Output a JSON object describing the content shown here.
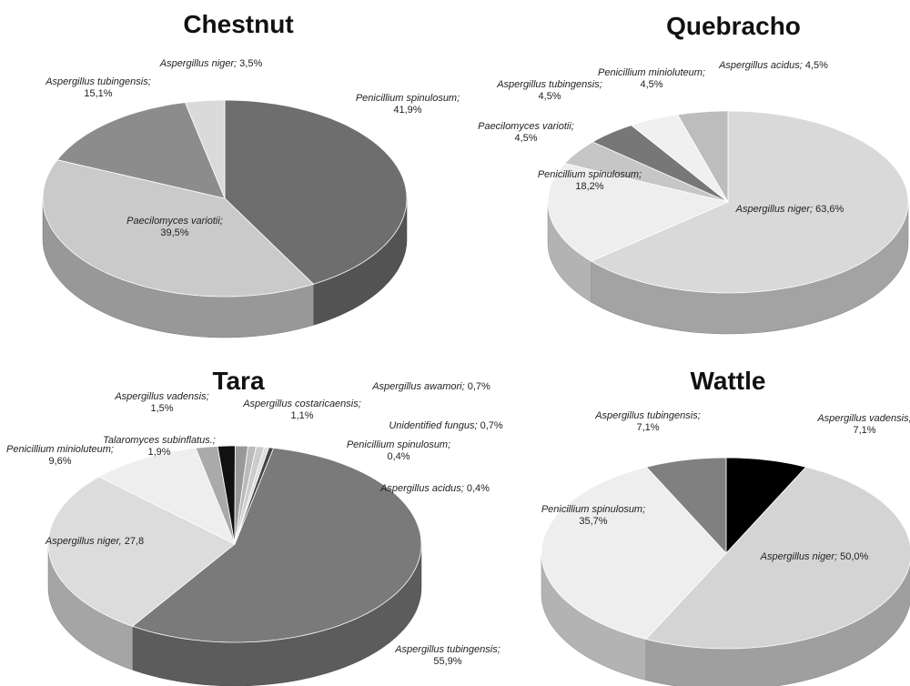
{
  "chart_data": [
    {
      "type": "pie3d",
      "title": "Chestnut",
      "categories": [
        "Penicillium spinulosum;",
        "Paecilomyces variotii;",
        "Aspergillus tubingensis;",
        "Aspergillus niger;"
      ],
      "values": [
        41.9,
        39.5,
        15.1,
        3.5
      ],
      "value_labels": [
        "41,9%",
        "39,5%",
        "15,1%",
        "3,5%"
      ],
      "colors": [
        "#6e6e6e",
        "#cacaca",
        "#8c8c8c",
        "#dadada"
      ]
    },
    {
      "type": "pie3d",
      "title": "Quebracho",
      "categories": [
        "Aspergillus niger;",
        "Penicillium spinulosum;",
        "Paecilomyces variotii;",
        "Aspergillus tubingensis;",
        "Penicillium minioluteum;",
        "Aspergillus acidus;"
      ],
      "values": [
        63.6,
        18.2,
        4.5,
        4.5,
        4.5,
        4.5
      ],
      "value_labels": [
        "63,6%",
        "18,2%",
        "4,5%",
        "4,5%",
        "4,5%",
        "4,5%"
      ],
      "colors": [
        "#d9d9d9",
        "#eeeeee",
        "#c6c6c6",
        "#777777",
        "#f0f0f0",
        "#bdbdbd"
      ]
    },
    {
      "type": "pie3d",
      "title": "Tara",
      "categories": [
        "Aspergillus tubingensis;",
        "Aspergillus niger,",
        "Penicillium minioluteum;",
        "Talaromyces subinflatus.;",
        "Aspergillus vadensis;",
        "Aspergillus costaricaensis;",
        "Aspergillus awamori;",
        "Unidentified fungus;",
        "Penicillium spinulosum;",
        "Aspergillus acidus;"
      ],
      "values": [
        55.9,
        27.8,
        9.6,
        1.9,
        1.5,
        1.1,
        0.7,
        0.7,
        0.4,
        0.4
      ],
      "value_labels": [
        "55,9%",
        "27,8",
        "9,6%",
        "1,9%",
        "1,5%",
        "1,1%",
        "0,7%",
        "0,7%",
        "0,4%",
        "0,4%"
      ],
      "colors": [
        "#7a7a7a",
        "#dcdcdc",
        "#eeeeee",
        "#aaaaaa",
        "#111111",
        "#999999",
        "#bbbbbb",
        "#cccccc",
        "#dddddd",
        "#444444"
      ]
    },
    {
      "type": "pie3d",
      "title": "Wattle",
      "categories": [
        "Aspergillus vadensis;",
        "Aspergillus niger;",
        "Penicillium spinulosum;",
        "Aspergillus tubingensis;"
      ],
      "values": [
        7.1,
        50.0,
        35.7,
        7.1
      ],
      "value_labels": [
        "7,1%",
        "50,0%",
        "35,7%",
        "7,1%"
      ],
      "colors": [
        "#000000",
        "#d4d4d4",
        "#eeeeee",
        "#808080"
      ]
    }
  ]
}
